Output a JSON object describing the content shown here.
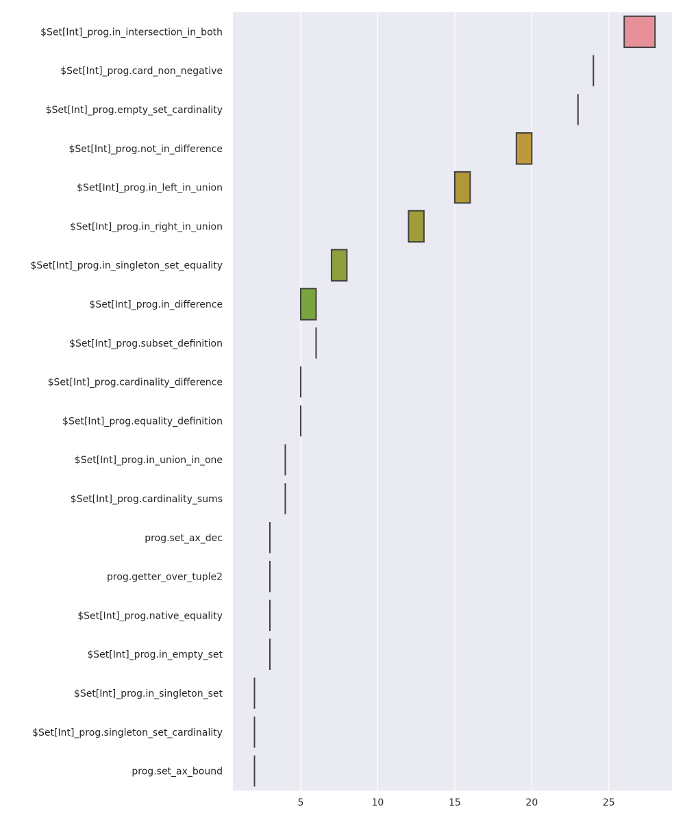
{
  "chart_data": {
    "type": "boxplot",
    "title": "",
    "xlabel": "",
    "ylabel": "",
    "xlim": [
      0.6,
      29.1
    ],
    "xticks": [
      5,
      10,
      15,
      20,
      25
    ],
    "grid": true,
    "categories": [
      "$Set[Int]_prog.in_intersection_in_both",
      "$Set[Int]_prog.card_non_negative",
      "$Set[Int]_prog.empty_set_cardinality",
      "$Set[Int]_prog.not_in_difference",
      "$Set[Int]_prog.in_left_in_union",
      "$Set[Int]_prog.in_right_in_union",
      "$Set[Int]_prog.in_singleton_set_equality",
      "$Set[Int]_prog.in_difference",
      "$Set[Int]_prog.subset_definition",
      "$Set[Int]_prog.cardinality_difference",
      "$Set[Int]_prog.equality_definition",
      "$Set[Int]_prog.in_union_in_one",
      "$Set[Int]_prog.cardinality_sums",
      "prog.set_ax_dec",
      "prog.getter_over_tuple2",
      "$Set[Int]_prog.native_equality",
      "$Set[Int]_prog.in_empty_set",
      "$Set[Int]_prog.in_singleton_set",
      "$Set[Int]_prog.singleton_set_cardinality",
      "prog.set_ax_bound"
    ],
    "boxes": [
      {
        "q1": 26,
        "q3": 28
      },
      {
        "q1": 24,
        "q3": 24
      },
      {
        "q1": 23,
        "q3": 23
      },
      {
        "q1": 19,
        "q3": 20
      },
      {
        "q1": 15,
        "q3": 16
      },
      {
        "q1": 12,
        "q3": 13
      },
      {
        "q1": 7,
        "q3": 8
      },
      {
        "q1": 5,
        "q3": 6
      },
      {
        "q1": 6,
        "q3": 6
      },
      {
        "q1": 5,
        "q3": 5
      },
      {
        "q1": 5,
        "q3": 5
      },
      {
        "q1": 4,
        "q3": 4
      },
      {
        "q1": 4,
        "q3": 4
      },
      {
        "q1": 3,
        "q3": 3
      },
      {
        "q1": 3,
        "q3": 3
      },
      {
        "q1": 3,
        "q3": 3
      },
      {
        "q1": 3,
        "q3": 3
      },
      {
        "q1": 2,
        "q3": 2
      },
      {
        "q1": 2,
        "q3": 2
      },
      {
        "q1": 2,
        "q3": 2
      }
    ],
    "colors": [
      "#e8909a",
      "#d9956a",
      "#c99a4a",
      "#c0983c",
      "#b09838",
      "#a19c3a",
      "#8ea03c",
      "#7aa43e",
      "#5aa83e",
      "#3eac4a",
      "#38ad6a",
      "#36ae84",
      "#38ae98",
      "#3aadab",
      "#3cabbf",
      "#46a7d6",
      "#6f9be6",
      "#9a8eea",
      "#c388e4",
      "#e485ca"
    ]
  }
}
